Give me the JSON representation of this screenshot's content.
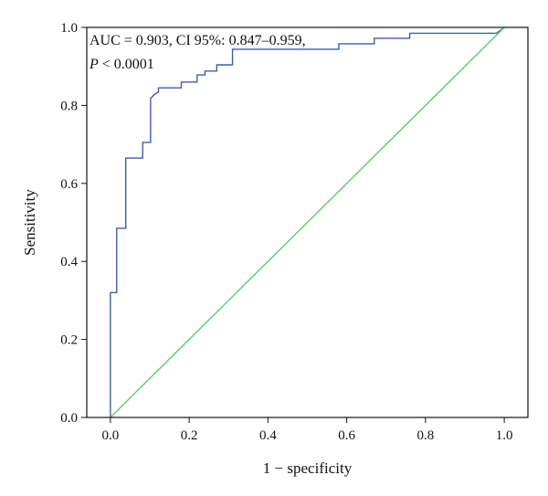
{
  "chart_data": {
    "type": "line",
    "title": "",
    "xlabel": "1 − specificity",
    "ylabel": "Sensitivity",
    "xlim": [
      -0.06,
      1.06
    ],
    "ylim": [
      0,
      1
    ],
    "x_ticks": [
      "0.0",
      "0.2",
      "0.4",
      "0.6",
      "0.8",
      "1.0"
    ],
    "y_ticks": [
      "0.0",
      "0.2",
      "0.4",
      "0.6",
      "0.8",
      "1.0"
    ],
    "grid": false,
    "legend": "none",
    "annotations": [
      "AUC = 0.903, CI 95%: 0.847–0.959,",
      "P",
      " < 0.0001"
    ],
    "series": [
      {
        "color": "#3f5fa8",
        "x": [
          0.0,
          0.0,
          0.0,
          0.0,
          0.016,
          0.016,
          0.039,
          0.039,
          0.057,
          0.082,
          0.082,
          0.102,
          0.102,
          0.112,
          0.122,
          0.122,
          0.18,
          0.18,
          0.22,
          0.22,
          0.24,
          0.24,
          0.27,
          0.27,
          0.31,
          0.31,
          0.58,
          0.58,
          0.67,
          0.67,
          0.76,
          0.76,
          0.98,
          1.0
        ],
        "y": [
          0.0,
          0.32,
          0.32,
          0.32,
          0.32,
          0.485,
          0.485,
          0.665,
          0.665,
          0.665,
          0.705,
          0.705,
          0.818,
          0.828,
          0.835,
          0.845,
          0.845,
          0.86,
          0.86,
          0.878,
          0.878,
          0.888,
          0.888,
          0.904,
          0.904,
          0.944,
          0.944,
          0.958,
          0.958,
          0.972,
          0.972,
          0.985,
          0.985,
          1.0
        ]
      },
      {
        "color": "#5cc96a",
        "x": [
          0.0,
          1.0
        ],
        "y": [
          0.0,
          1.0
        ]
      }
    ]
  }
}
